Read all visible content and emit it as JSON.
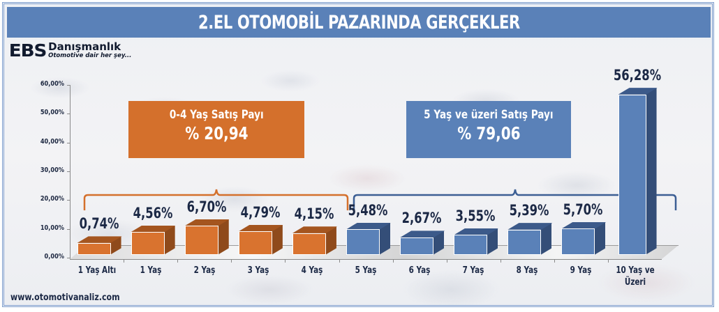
{
  "title": "2.EL OTOMOBİL PAZARINDA GERÇEKLER",
  "logo": {
    "brand": "EBS",
    "name": "Danışmanlık",
    "tagline": "Otomotive dair her şey..."
  },
  "footer": {
    "url": "www.otomotivanaliz.com"
  },
  "callouts": {
    "young": {
      "title": "0-4 Yaş Satış Payı",
      "value": "% 20,94",
      "color": "#d4702c"
    },
    "old": {
      "title": "5 Yaş ve üzeri Satış Payı",
      "value": "% 79,06",
      "color": "#5a81b8"
    }
  },
  "colors": {
    "title_bar": "#5a81b8",
    "orange_front": "#d9732f",
    "orange_side": "#8f4a1b",
    "blue_front": "#5a81b8",
    "blue_side": "#344e78",
    "text_dark": "#1b2845"
  },
  "chart_data": {
    "type": "bar",
    "title": "2.EL OTOMOBİL PAZARINDA GERÇEKLER",
    "xlabel": "",
    "ylabel": "",
    "ylim": [
      0,
      60
    ],
    "yticks": [
      "0,00%",
      "10,00%",
      "20,00%",
      "30,00%",
      "40,00%",
      "50,00%",
      "60,00%"
    ],
    "categories": [
      "1 Yaş Altı",
      "1 Yaş",
      "2 Yaş",
      "3 Yaş",
      "4 Yaş",
      "5 Yaş",
      "6 Yaş",
      "7 Yaş",
      "8 Yaş",
      "9 Yaş",
      "10 Yaş ve Üzeri"
    ],
    "values": [
      0.74,
      4.56,
      6.7,
      4.79,
      4.15,
      5.48,
      2.67,
      3.55,
      5.39,
      5.7,
      56.28
    ],
    "labels": [
      "0,74%",
      "4,56%",
      "6,70%",
      "4,79%",
      "4,15%",
      "5,48%",
      "2,67%",
      "3,55%",
      "5,39%",
      "5,70%",
      "56,28%"
    ],
    "groups": [
      {
        "name": "0-4 Yaş Satış Payı",
        "total": "% 20,94",
        "categories": [
          "1 Yaş Altı",
          "1 Yaş",
          "2 Yaş",
          "3 Yaş",
          "4 Yaş"
        ],
        "color": "#d9732f"
      },
      {
        "name": "5 Yaş ve üzeri Satış Payı",
        "total": "% 79,06",
        "categories": [
          "5 Yaş",
          "6 Yaş",
          "7 Yaş",
          "8 Yaş",
          "9 Yaş",
          "10 Yaş ve Üzeri"
        ],
        "color": "#5a81b8"
      }
    ],
    "grid": false,
    "legend": "none",
    "style": "3d-column"
  }
}
